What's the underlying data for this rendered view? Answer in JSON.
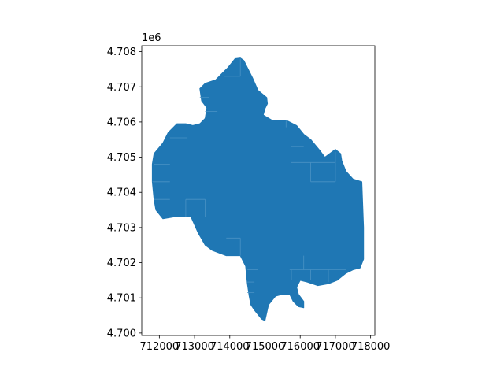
{
  "chart_data": {
    "type": "map",
    "title": "",
    "xlabel": "",
    "ylabel": "",
    "y_offset_label": "1e6",
    "xlim": [
      711500,
      718120
    ],
    "ylim": [
      4699930,
      4708170
    ],
    "x_ticks": [
      {
        "value": 712000,
        "label": "712000"
      },
      {
        "value": 713000,
        "label": "713000"
      },
      {
        "value": 714000,
        "label": "714000"
      },
      {
        "value": 715000,
        "label": "715000"
      },
      {
        "value": 716000,
        "label": "716000"
      },
      {
        "value": 717000,
        "label": "717000"
      },
      {
        "value": 718000,
        "label": "718000"
      }
    ],
    "y_ticks": [
      {
        "value": 4700000,
        "label": "4.700"
      },
      {
        "value": 4701000,
        "label": "4.701"
      },
      {
        "value": 4702000,
        "label": "4.702"
      },
      {
        "value": 4703000,
        "label": "4.703"
      },
      {
        "value": 4704000,
        "label": "4.704"
      },
      {
        "value": 4705000,
        "label": "4.705"
      },
      {
        "value": 4706000,
        "label": "4.706"
      },
      {
        "value": 4707000,
        "label": "4.707"
      },
      {
        "value": 4708000,
        "label": "4.708"
      }
    ],
    "fill_color": "#1f77b4",
    "inner_line_color": "#4a92c4",
    "grid": false,
    "legend": "none",
    "polygon": [
      [
        714150,
        4707800
      ],
      [
        714300,
        4707820
      ],
      [
        714400,
        4707750
      ],
      [
        714500,
        4707550
      ],
      [
        714650,
        4707250
      ],
      [
        714800,
        4706900
      ],
      [
        714950,
        4706780
      ],
      [
        715050,
        4706700
      ],
      [
        715070,
        4706520
      ],
      [
        715000,
        4706380
      ],
      [
        714950,
        4706200
      ],
      [
        715200,
        4706050
      ],
      [
        715600,
        4706050
      ],
      [
        715900,
        4705900
      ],
      [
        716100,
        4705650
      ],
      [
        716300,
        4705500
      ],
      [
        716550,
        4705200
      ],
      [
        716700,
        4705000
      ],
      [
        716900,
        4705150
      ],
      [
        717000,
        4705220
      ],
      [
        717150,
        4705100
      ],
      [
        717180,
        4704900
      ],
      [
        717300,
        4704600
      ],
      [
        717500,
        4704380
      ],
      [
        717750,
        4704300
      ],
      [
        717800,
        4703000
      ],
      [
        717800,
        4702100
      ],
      [
        717700,
        4701850
      ],
      [
        717500,
        4701800
      ],
      [
        717300,
        4701700
      ],
      [
        717050,
        4701500
      ],
      [
        716800,
        4701400
      ],
      [
        716500,
        4701350
      ],
      [
        716200,
        4701450
      ],
      [
        716000,
        4701500
      ],
      [
        715900,
        4701300
      ],
      [
        715950,
        4701100
      ],
      [
        716100,
        4700900
      ],
      [
        716100,
        4700720
      ],
      [
        715950,
        4700750
      ],
      [
        715800,
        4700900
      ],
      [
        715700,
        4701100
      ],
      [
        715500,
        4701100
      ],
      [
        715300,
        4701050
      ],
      [
        715100,
        4700800
      ],
      [
        715000,
        4700350
      ],
      [
        714900,
        4700400
      ],
      [
        714700,
        4700650
      ],
      [
        714600,
        4700800
      ],
      [
        714550,
        4701050
      ],
      [
        714500,
        4701400
      ],
      [
        714450,
        4701900
      ],
      [
        714300,
        4702200
      ],
      [
        713900,
        4702200
      ],
      [
        713500,
        4702350
      ],
      [
        713300,
        4702500
      ],
      [
        713100,
        4702850
      ],
      [
        712900,
        4703300
      ],
      [
        712400,
        4703300
      ],
      [
        712100,
        4703250
      ],
      [
        711900,
        4703500
      ],
      [
        711850,
        4703800
      ],
      [
        711800,
        4704300
      ],
      [
        711800,
        4704800
      ],
      [
        711850,
        4705100
      ],
      [
        712100,
        4705400
      ],
      [
        712250,
        4705700
      ],
      [
        712500,
        4705950
      ],
      [
        712750,
        4705950
      ],
      [
        712950,
        4705900
      ],
      [
        713150,
        4705950
      ],
      [
        713300,
        4706100
      ],
      [
        713350,
        4706400
      ],
      [
        713200,
        4706600
      ],
      [
        713150,
        4706950
      ],
      [
        713300,
        4707100
      ],
      [
        713600,
        4707200
      ],
      [
        713800,
        4707400
      ],
      [
        713950,
        4707550
      ]
    ],
    "boundary_lines": [
      [
        [
          713850,
          4707300
        ],
        [
          714300,
          4707300
        ]
      ],
      [
        [
          714300,
          4707300
        ],
        [
          714300,
          4707800
        ]
      ],
      [
        [
          713150,
          4706700
        ],
        [
          713400,
          4706700
        ]
      ],
      [
        [
          713300,
          4706300
        ],
        [
          713650,
          4706300
        ]
      ],
      [
        [
          712300,
          4705550
        ],
        [
          712800,
          4705550
        ]
      ],
      [
        [
          711850,
          4704800
        ],
        [
          712300,
          4704800
        ]
      ],
      [
        [
          711800,
          4704300
        ],
        [
          712300,
          4704300
        ]
      ],
      [
        [
          711850,
          4703800
        ],
        [
          712300,
          4703800
        ]
      ],
      [
        [
          712750,
          4703300
        ],
        [
          712750,
          4703800
        ]
      ],
      [
        [
          712750,
          4703800
        ],
        [
          713300,
          4703800
        ]
      ],
      [
        [
          713300,
          4703300
        ],
        [
          713300,
          4703800
        ]
      ],
      [
        [
          714300,
          4702200
        ],
        [
          714300,
          4702700
        ]
      ],
      [
        [
          713900,
          4702700
        ],
        [
          714300,
          4702700
        ]
      ],
      [
        [
          714500,
          4701450
        ],
        [
          714700,
          4701450
        ]
      ],
      [
        [
          714500,
          4701800
        ],
        [
          714800,
          4701800
        ]
      ],
      [
        [
          714500,
          4701150
        ],
        [
          714700,
          4701150
        ]
      ],
      [
        [
          715600,
          4705850
        ],
        [
          715600,
          4706050
        ]
      ],
      [
        [
          715750,
          4705300
        ],
        [
          716100,
          4705300
        ]
      ],
      [
        [
          715750,
          4704850
        ],
        [
          716300,
          4704850
        ]
      ],
      [
        [
          716300,
          4704300
        ],
        [
          716300,
          4704850
        ]
      ],
      [
        [
          716300,
          4704850
        ],
        [
          717000,
          4704850
        ]
      ],
      [
        [
          717000,
          4704300
        ],
        [
          717000,
          4705150
        ]
      ],
      [
        [
          716300,
          4704300
        ],
        [
          717000,
          4704300
        ]
      ],
      [
        [
          716300,
          4701500
        ],
        [
          716300,
          4701800
        ]
      ],
      [
        [
          715700,
          4701800
        ],
        [
          717300,
          4701800
        ]
      ],
      [
        [
          716800,
          4701450
        ],
        [
          716800,
          4701800
        ]
      ],
      [
        [
          715750,
          4701500
        ],
        [
          715750,
          4701800
        ]
      ],
      [
        [
          716100,
          4701800
        ],
        [
          716100,
          4702200
        ]
      ]
    ]
  }
}
